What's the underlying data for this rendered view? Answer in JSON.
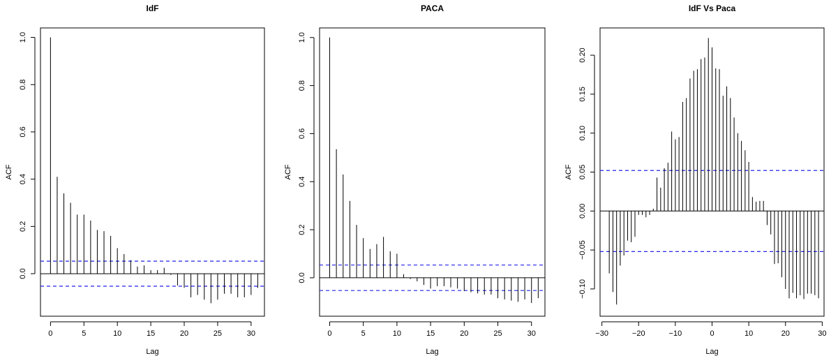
{
  "chart_data": [
    {
      "type": "bar",
      "subtype": "acf",
      "title": "IdF",
      "xlabel": "Lag",
      "ylabel": "ACF",
      "xlim": [
        -1.5,
        32
      ],
      "ylim": [
        -0.18,
        1.04
      ],
      "xticks": [
        0,
        5,
        10,
        15,
        20,
        25,
        30
      ],
      "yticks": [
        0.0,
        0.2,
        0.4,
        0.6,
        0.8,
        1.0
      ],
      "ytick_labels": [
        "0.0",
        "0.2",
        "0.4",
        "0.6",
        "0.8",
        "1.0"
      ],
      "confidence_bound": 0.053,
      "lag_start": 0,
      "values": [
        1.0,
        0.41,
        0.34,
        0.3,
        0.25,
        0.25,
        0.225,
        0.185,
        0.18,
        0.16,
        0.108,
        0.083,
        0.057,
        0.03,
        0.035,
        0.015,
        0.015,
        0.025,
        -0.005,
        -0.05,
        -0.06,
        -0.1,
        -0.09,
        -0.11,
        -0.125,
        -0.11,
        -0.085,
        -0.085,
        -0.1,
        -0.1,
        -0.09,
        -0.06
      ]
    },
    {
      "type": "bar",
      "subtype": "acf",
      "title": "PACA",
      "xlabel": "Lag",
      "ylabel": "ACF",
      "xlim": [
        -1.5,
        32
      ],
      "ylim": [
        -0.16,
        1.04
      ],
      "xticks": [
        0,
        5,
        10,
        15,
        20,
        25,
        30
      ],
      "yticks": [
        0.0,
        0.2,
        0.4,
        0.6,
        0.8,
        1.0
      ],
      "ytick_labels": [
        "0.0",
        "0.2",
        "0.4",
        "0.6",
        "0.8",
        "1.0"
      ],
      "confidence_bound": 0.053,
      "lag_start": 0,
      "values": [
        1.0,
        0.535,
        0.43,
        0.32,
        0.22,
        0.165,
        0.12,
        0.14,
        0.17,
        0.11,
        0.1,
        0.015,
        -0.005,
        -0.015,
        -0.03,
        -0.045,
        -0.035,
        -0.035,
        -0.04,
        -0.045,
        -0.055,
        -0.06,
        -0.065,
        -0.07,
        -0.07,
        -0.085,
        -0.09,
        -0.095,
        -0.1,
        -0.09,
        -0.105,
        -0.085
      ]
    },
    {
      "type": "bar",
      "subtype": "ccf",
      "title": "IdF Vs Paca",
      "xlabel": "Lag",
      "ylabel": "ACF",
      "xlim": [
        -30.5,
        30.5
      ],
      "ylim": [
        -0.135,
        0.235
      ],
      "xticks": [
        -30,
        -20,
        -10,
        0,
        10,
        20,
        30
      ],
      "xtick_labels": [
        "−30",
        "−20",
        "−10",
        "0",
        "10",
        "20",
        "30"
      ],
      "yticks": [
        -0.1,
        -0.05,
        0.0,
        0.05,
        0.1,
        0.15,
        0.2
      ],
      "ytick_labels": [
        "−0.10",
        "−0.05",
        "0.00",
        "0.05",
        "0.10",
        "0.15",
        "0.20"
      ],
      "confidence_bound": 0.052,
      "lag_start": -28,
      "values": [
        -0.08,
        -0.104,
        -0.12,
        -0.07,
        -0.057,
        -0.038,
        -0.04,
        -0.033,
        -0.005,
        -0.005,
        -0.008,
        -0.005,
        0.003,
        0.043,
        0.03,
        0.055,
        0.062,
        0.102,
        0.092,
        0.095,
        0.14,
        0.145,
        0.17,
        0.18,
        0.182,
        0.195,
        0.197,
        0.222,
        0.21,
        0.183,
        0.182,
        0.148,
        0.16,
        0.145,
        0.12,
        0.1,
        0.09,
        0.078,
        0.063,
        0.018,
        0.012,
        0.013,
        0.013,
        -0.018,
        -0.03,
        -0.068,
        -0.067,
        -0.085,
        -0.1,
        -0.112,
        -0.105,
        -0.112,
        -0.108,
        -0.113,
        -0.106,
        -0.106,
        -0.108,
        -0.112
      ]
    }
  ]
}
